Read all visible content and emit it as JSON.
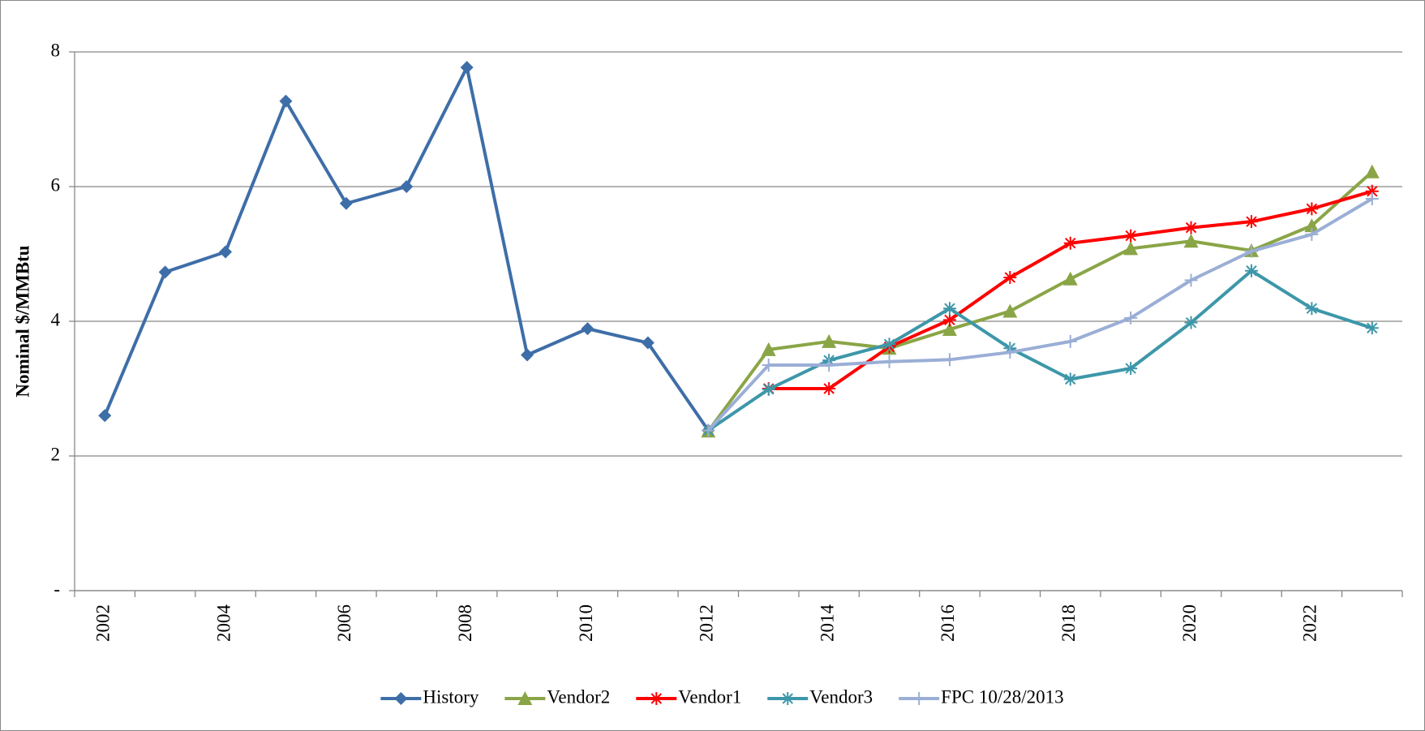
{
  "chart_data": {
    "type": "line",
    "y_label": "Nominal $/MMBtu",
    "categories": [
      "2002",
      null,
      "2004",
      null,
      "2006",
      null,
      "2008",
      null,
      "2010",
      null,
      "2012",
      null,
      "2014",
      null,
      "2016",
      null,
      "2018",
      null,
      "2020",
      null,
      "2022",
      null
    ],
    "ylim": [
      0,
      8
    ],
    "yticks": [
      {
        "value": 0,
        "label": "-"
      },
      2,
      4,
      6,
      8
    ],
    "grid": true,
    "legend": "bottom",
    "series": [
      {
        "name": "History",
        "color": "#3e6ea8",
        "marker": "diamond",
        "values": [
          2.6,
          4.73,
          5.03,
          7.27,
          5.75,
          6.0,
          7.77,
          3.5,
          3.89,
          3.68,
          2.38,
          null,
          null,
          null,
          null,
          null,
          null,
          null,
          null,
          null,
          null,
          null
        ]
      },
      {
        "name": "Vendor2",
        "color": "#8aa546",
        "marker": "triangle",
        "values": [
          null,
          null,
          null,
          null,
          null,
          null,
          null,
          null,
          null,
          null,
          2.37,
          3.58,
          3.7,
          3.6,
          3.88,
          4.15,
          4.63,
          5.08,
          5.19,
          5.05,
          5.42,
          6.22
        ]
      },
      {
        "name": "Vendor1",
        "color": "#ff0000",
        "marker": "star",
        "values": [
          null,
          null,
          null,
          null,
          null,
          null,
          null,
          null,
          null,
          null,
          null,
          3.0,
          3.0,
          3.62,
          4.02,
          4.65,
          5.16,
          5.27,
          5.39,
          5.48,
          5.67,
          5.93
        ]
      },
      {
        "name": "Vendor3",
        "color": "#3d97a9",
        "marker": "asterisk",
        "values": [
          null,
          null,
          null,
          null,
          null,
          null,
          null,
          null,
          null,
          null,
          2.38,
          2.99,
          3.42,
          3.66,
          4.19,
          3.6,
          3.14,
          3.3,
          3.98,
          4.75,
          4.19,
          3.9
        ]
      },
      {
        "name": "FPC 10/28/2013",
        "color": "#9aaed6",
        "marker": "plus",
        "values": [
          null,
          null,
          null,
          null,
          null,
          null,
          null,
          null,
          null,
          null,
          2.38,
          3.35,
          3.35,
          3.4,
          3.43,
          3.54,
          3.7,
          4.05,
          4.61,
          5.04,
          5.29,
          5.82
        ]
      }
    ]
  }
}
